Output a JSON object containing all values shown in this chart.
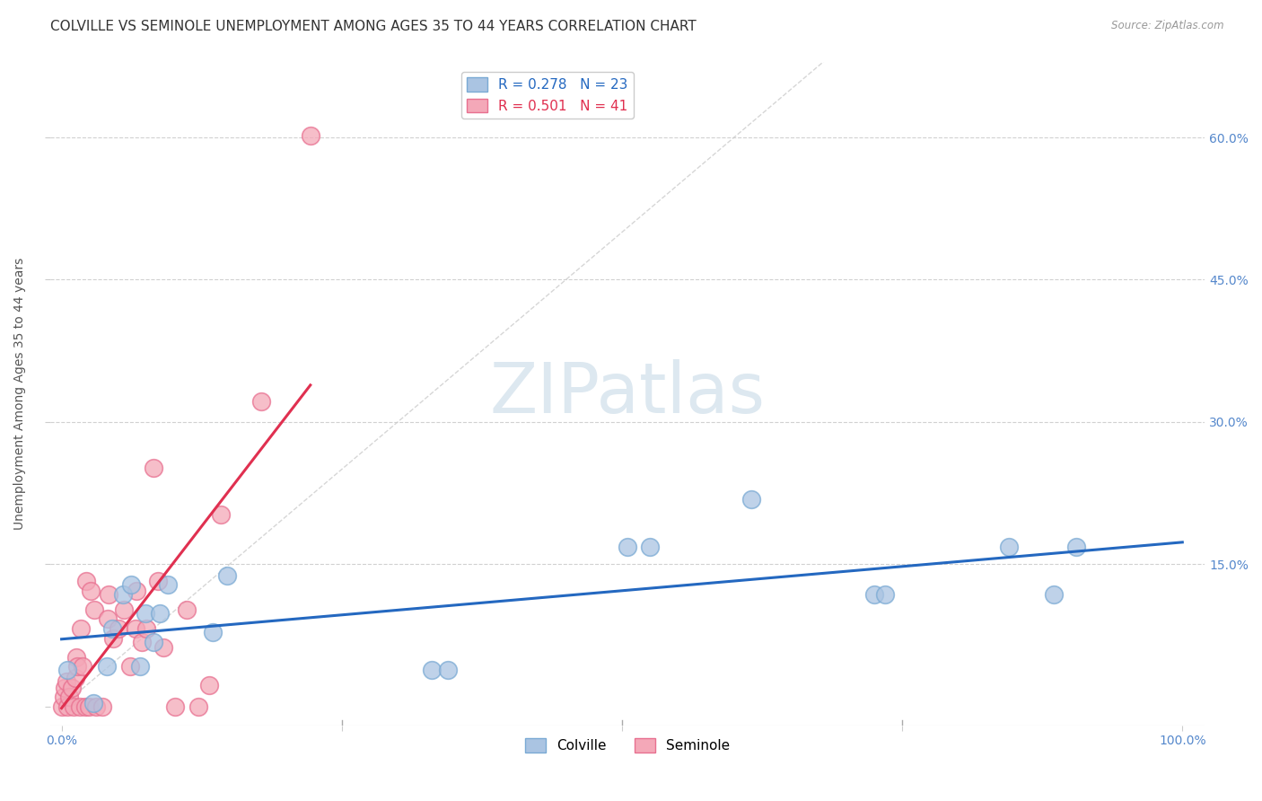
{
  "title": "COLVILLE VS SEMINOLE UNEMPLOYMENT AMONG AGES 35 TO 44 YEARS CORRELATION CHART",
  "source": "Source: ZipAtlas.com",
  "ylabel": "Unemployment Among Ages 35 to 44 years",
  "xlim": [
    -0.01,
    1.02
  ],
  "ylim": [
    -0.02,
    0.68
  ],
  "xticks": [
    0.0,
    0.25,
    0.5,
    0.75,
    1.0
  ],
  "xtick_labels": [
    "0.0%",
    "",
    "",
    "",
    "100.0%"
  ],
  "yticks": [
    0.0,
    0.15,
    0.3,
    0.45,
    0.6
  ],
  "ytick_labels_right": [
    "",
    "15.0%",
    "30.0%",
    "45.0%",
    "60.0%"
  ],
  "colville_R": 0.278,
  "colville_N": 23,
  "seminole_R": 0.501,
  "seminole_N": 41,
  "colville_color": "#aac4e2",
  "colville_edge_color": "#7aaad4",
  "colville_line_color": "#2468c0",
  "seminole_color": "#f4a8b8",
  "seminole_edge_color": "#e87090",
  "seminole_line_color": "#e03050",
  "colville_x": [
    0.005,
    0.028,
    0.04,
    0.045,
    0.055,
    0.062,
    0.07,
    0.075,
    0.082,
    0.088,
    0.095,
    0.135,
    0.148,
    0.33,
    0.345,
    0.505,
    0.525,
    0.615,
    0.725,
    0.735,
    0.845,
    0.885,
    0.905
  ],
  "colville_y": [
    0.038,
    0.003,
    0.042,
    0.082,
    0.118,
    0.128,
    0.042,
    0.098,
    0.068,
    0.098,
    0.128,
    0.078,
    0.138,
    0.038,
    0.038,
    0.168,
    0.168,
    0.218,
    0.118,
    0.118,
    0.168,
    0.118,
    0.168
  ],
  "seminole_x": [
    0.0,
    0.002,
    0.003,
    0.004,
    0.005,
    0.007,
    0.009,
    0.011,
    0.012,
    0.013,
    0.014,
    0.016,
    0.017,
    0.019,
    0.021,
    0.022,
    0.024,
    0.026,
    0.029,
    0.031,
    0.036,
    0.041,
    0.042,
    0.046,
    0.051,
    0.056,
    0.061,
    0.066,
    0.067,
    0.072,
    0.076,
    0.082,
    0.086,
    0.091,
    0.101,
    0.112,
    0.122,
    0.132,
    0.142,
    0.178,
    0.222
  ],
  "seminole_y": [
    0.0,
    0.01,
    0.02,
    0.026,
    0.0,
    0.01,
    0.02,
    0.0,
    0.03,
    0.052,
    0.042,
    0.0,
    0.082,
    0.042,
    0.0,
    0.132,
    0.0,
    0.122,
    0.102,
    0.0,
    0.0,
    0.092,
    0.118,
    0.072,
    0.082,
    0.102,
    0.042,
    0.082,
    0.122,
    0.068,
    0.082,
    0.252,
    0.132,
    0.062,
    0.0,
    0.102,
    0.0,
    0.022,
    0.202,
    0.322,
    0.602
  ],
  "background_color": "#ffffff",
  "grid_color": "#cccccc",
  "diag_line_color": "#cccccc",
  "title_fontsize": 11,
  "axis_fontsize": 10,
  "label_fontsize": 10,
  "legend_fontsize": 11,
  "watermark_text": "ZIPatlas",
  "watermark_color": "#dde8f0"
}
